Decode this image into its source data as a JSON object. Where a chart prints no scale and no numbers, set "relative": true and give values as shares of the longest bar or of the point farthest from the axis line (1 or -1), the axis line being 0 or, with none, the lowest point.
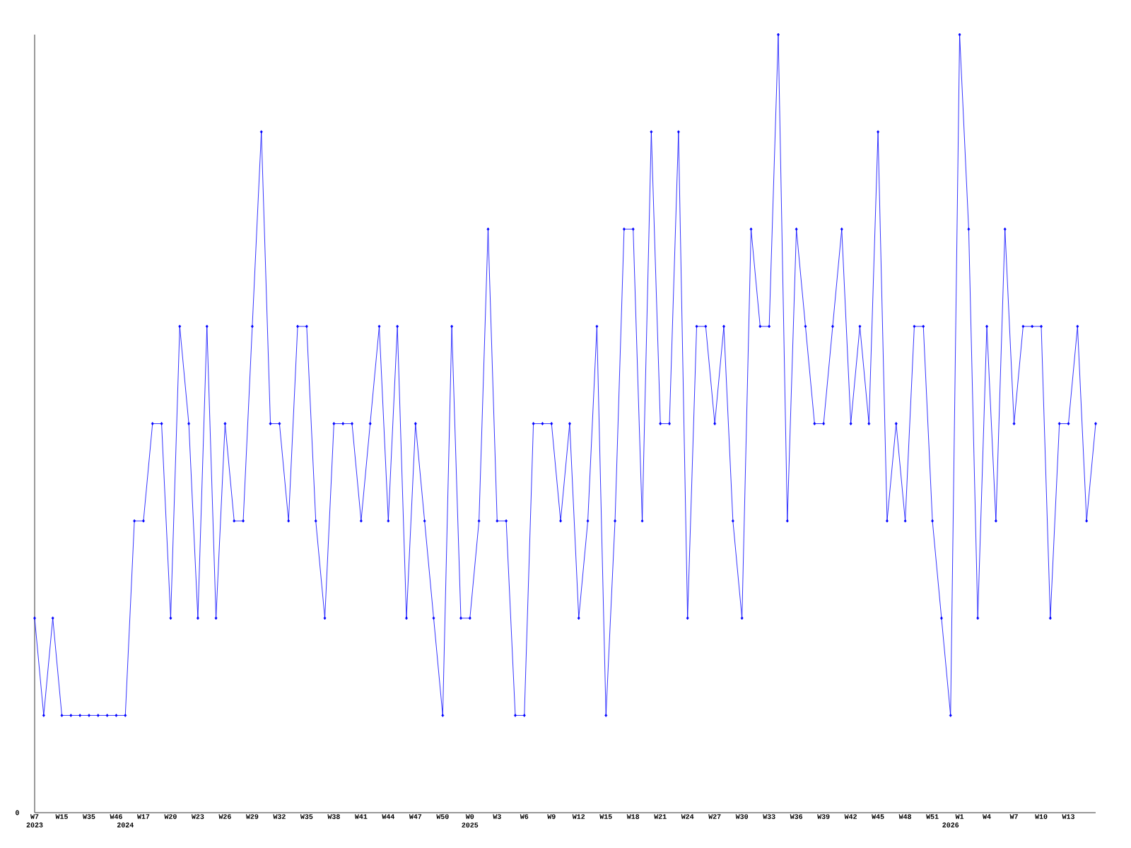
{
  "chart_data": {
    "type": "line",
    "relative": true,
    "color": "#0000ff",
    "marker": "diamond",
    "annotations": [
      "0"
    ],
    "categories": [
      "W7\n2023",
      null,
      null,
      "W15",
      null,
      null,
      "W35",
      null,
      null,
      "W46",
      "\n2024",
      null,
      "W17",
      null,
      null,
      "W20",
      null,
      null,
      "W23",
      null,
      null,
      "W26",
      null,
      null,
      "W29",
      null,
      null,
      "W32",
      null,
      null,
      "W35",
      null,
      null,
      "W38",
      null,
      null,
      "W41",
      null,
      null,
      "W44",
      null,
      null,
      "W47",
      null,
      null,
      "W50",
      null,
      null,
      "W0\n2025",
      null,
      null,
      "W3",
      null,
      null,
      "W6",
      null,
      null,
      "W9",
      null,
      null,
      "W12",
      null,
      null,
      "W15",
      null,
      null,
      "W18",
      null,
      null,
      "W21",
      null,
      null,
      "W24",
      null,
      null,
      "W27",
      null,
      null,
      "W30",
      null,
      null,
      "W33",
      null,
      null,
      "W36",
      null,
      null,
      "W39",
      null,
      null,
      "W42",
      null,
      null,
      "W45",
      null,
      null,
      "W48",
      null,
      null,
      "W51",
      null,
      "\n2026",
      "W1",
      null,
      null,
      "W4",
      null,
      null,
      "W7",
      null,
      null,
      "W10",
      null,
      null,
      "W13",
      null,
      null,
      null
    ],
    "values": [
      0.25,
      0.125,
      0.25,
      0.125,
      0.125,
      0.125,
      0.125,
      0.125,
      0.125,
      0.125,
      0.125,
      0.375,
      0.375,
      0.5,
      0.5,
      0.25,
      0.625,
      0.5,
      0.25,
      0.625,
      0.25,
      0.5,
      0.375,
      0.375,
      0.625,
      0.875,
      0.5,
      0.5,
      0.375,
      0.625,
      0.625,
      0.375,
      0.25,
      0.5,
      0.5,
      0.5,
      0.375,
      0.5,
      0.625,
      0.375,
      0.625,
      0.25,
      0.5,
      0.375,
      0.25,
      0.125,
      0.625,
      0.25,
      0.25,
      0.375,
      0.75,
      0.375,
      0.375,
      0.125,
      0.125,
      0.5,
      0.5,
      0.5,
      0.375,
      0.5,
      0.25,
      0.375,
      0.625,
      0.125,
      0.375,
      0.75,
      0.75,
      0.375,
      0.875,
      0.5,
      0.5,
      0.875,
      0.25,
      0.625,
      0.625,
      0.5,
      0.625,
      0.375,
      0.25,
      0.75,
      0.625,
      0.625,
      1,
      0.375,
      0.75,
      0.625,
      0.5,
      0.5,
      0.625,
      0.75,
      0.5,
      0.625,
      0.5,
      0.875,
      0.375,
      0.5,
      0.375,
      0.625,
      0.625,
      0.375,
      0.25,
      0.125,
      1,
      0.75,
      0.25,
      0.625,
      0.375,
      0.75,
      0.5,
      0.625,
      0.625,
      0.625,
      0.25,
      0.5,
      0.5,
      0.625,
      0.375,
      0.5
    ]
  }
}
